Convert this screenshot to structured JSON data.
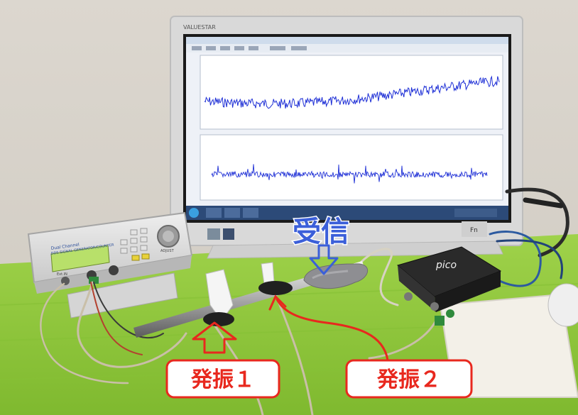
{
  "monitor": {
    "brand": "VALUESTAR"
  },
  "generator": {
    "line1": "Dual Channel",
    "line2": "DDS SIGNAL GENERATOR/COUNTER",
    "knob_label": "ADJUST",
    "port_label": "Ext.IN"
  },
  "scope": {
    "brand": "pico"
  },
  "annotations": {
    "receive": "受信",
    "osc1": "発振１",
    "osc2": "発振２"
  },
  "colors": {
    "annotation_red": "#e8281e",
    "annotation_blue": "#3b5fd9",
    "waveform": "#1e2fd6",
    "mat_green": "#8fca3c"
  }
}
